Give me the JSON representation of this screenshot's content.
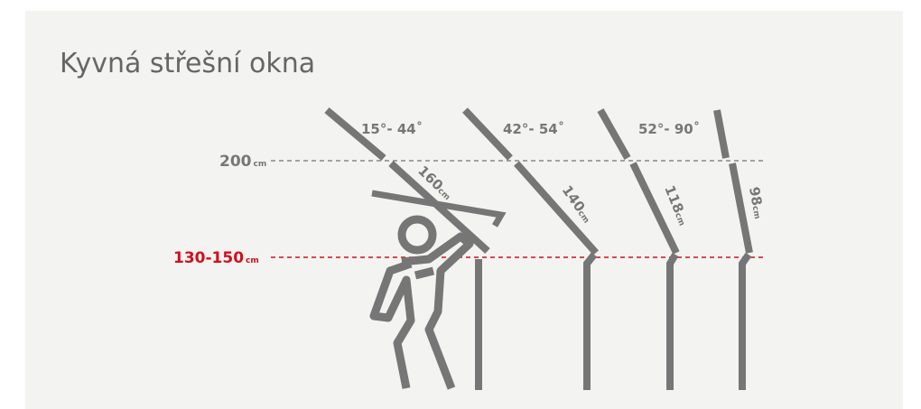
{
  "title": "Kyvná střešní okna",
  "levels": [
    {
      "value": "200",
      "unit": "cm"
    },
    {
      "value": "130-150",
      "unit": "cm"
    }
  ],
  "windows": [
    {
      "angle": "15°- 44˚",
      "length": "160",
      "unit": "cm"
    },
    {
      "angle": "42°- 54˚",
      "length": "140",
      "unit": "cm"
    },
    {
      "angle": "52°- 90˚",
      "length": "118",
      "unit": "cm"
    },
    {
      "length": "98",
      "unit": "cm"
    }
  ]
}
